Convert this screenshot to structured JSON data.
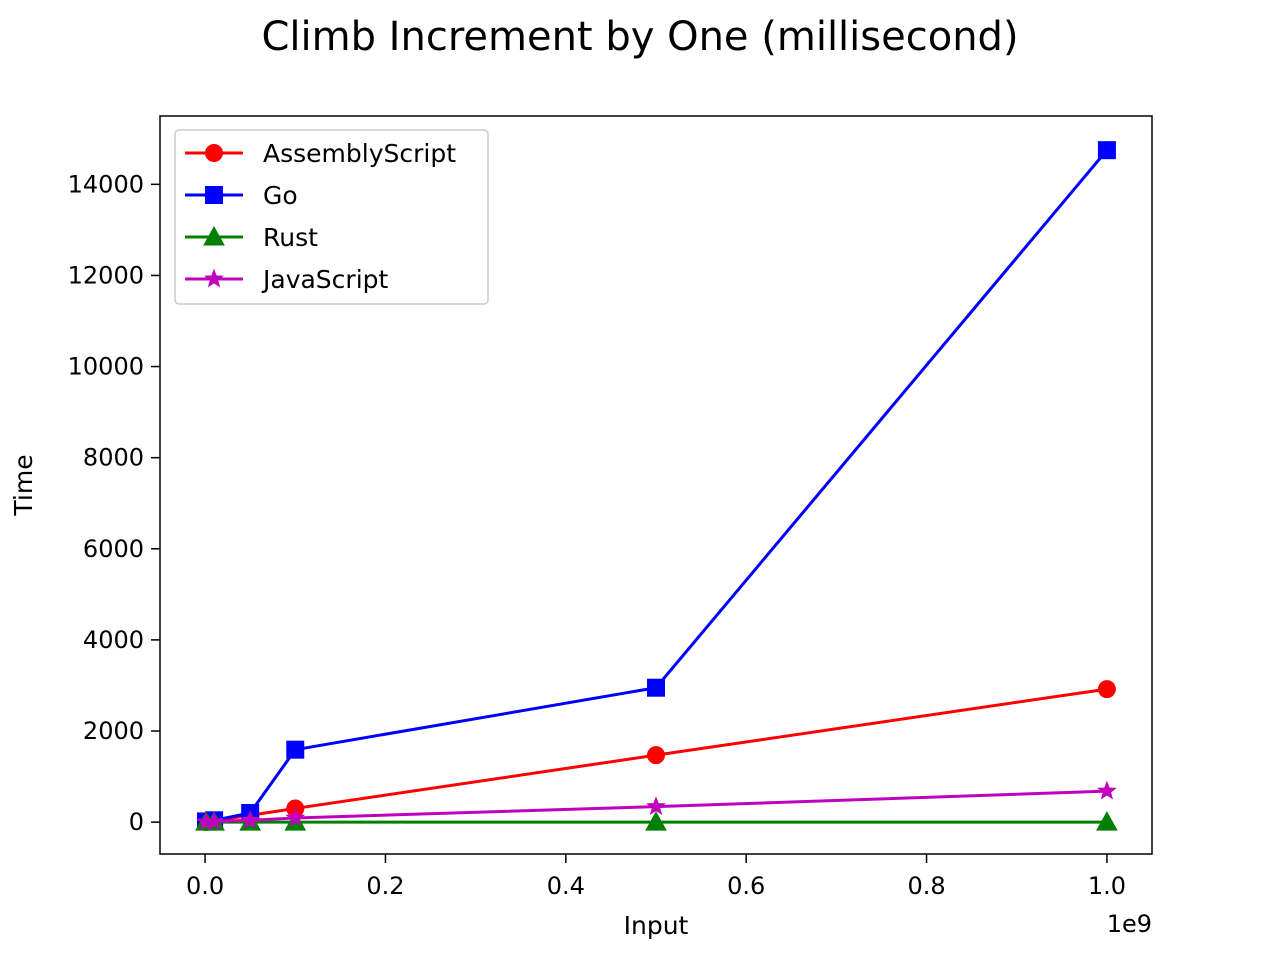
{
  "chart_data": {
    "type": "line",
    "title": "Climb Increment by One (millisecond)",
    "xlabel": "Input",
    "ylabel": "Time",
    "x_offset_label": "1e9",
    "xlim": [
      -0.05,
      1.05
    ],
    "ylim": [
      -700,
      15500
    ],
    "xticks": [
      0.0,
      0.2,
      0.4,
      0.6,
      0.8,
      1.0
    ],
    "xtick_labels": [
      "0.0",
      "0.2",
      "0.4",
      "0.6",
      "0.8",
      "1.0"
    ],
    "yticks": [
      0,
      2000,
      4000,
      6000,
      8000,
      10000,
      12000,
      14000
    ],
    "ytick_labels": [
      "0",
      "2000",
      "4000",
      "6000",
      "8000",
      "10000",
      "12000",
      "14000"
    ],
    "grid": false,
    "legend_position": "upper-left",
    "x": [
      0.001,
      0.01,
      0.05,
      0.1,
      0.5,
      1.0
    ],
    "series": [
      {
        "name": "AssemblyScript",
        "color": "#ff0000",
        "marker": "circle",
        "values": [
          3,
          30,
          150,
          300,
          1470,
          2920
        ]
      },
      {
        "name": "Go",
        "color": "#0000ff",
        "marker": "square",
        "values": [
          15,
          40,
          200,
          1590,
          2950,
          14750
        ]
      },
      {
        "name": "Rust",
        "color": "#008000",
        "marker": "triangle",
        "values": [
          0,
          0,
          0,
          0,
          0,
          0
        ]
      },
      {
        "name": "JavaScript",
        "color": "#bf00bf",
        "marker": "star",
        "values": [
          2,
          10,
          40,
          90,
          340,
          680
        ]
      }
    ]
  }
}
